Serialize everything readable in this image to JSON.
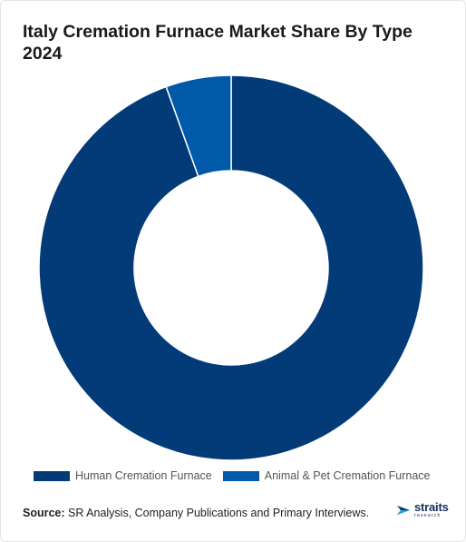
{
  "title": "Italy Cremation Furnace Market Share By Type 2024",
  "chart_data": {
    "type": "pie",
    "donut": true,
    "categories": [
      "Human Cremation Furnace",
      "Animal & Pet Cremation Furnace"
    ],
    "values": [
      94.5,
      5.5
    ],
    "colors": [
      "#023b78",
      "#0059a9"
    ],
    "legend": "bottom"
  },
  "source": {
    "label": "Source:",
    "text": " SR Analysis, Company Publications and Primary Interviews."
  },
  "logo": {
    "word": "straits",
    "sub": "research"
  }
}
